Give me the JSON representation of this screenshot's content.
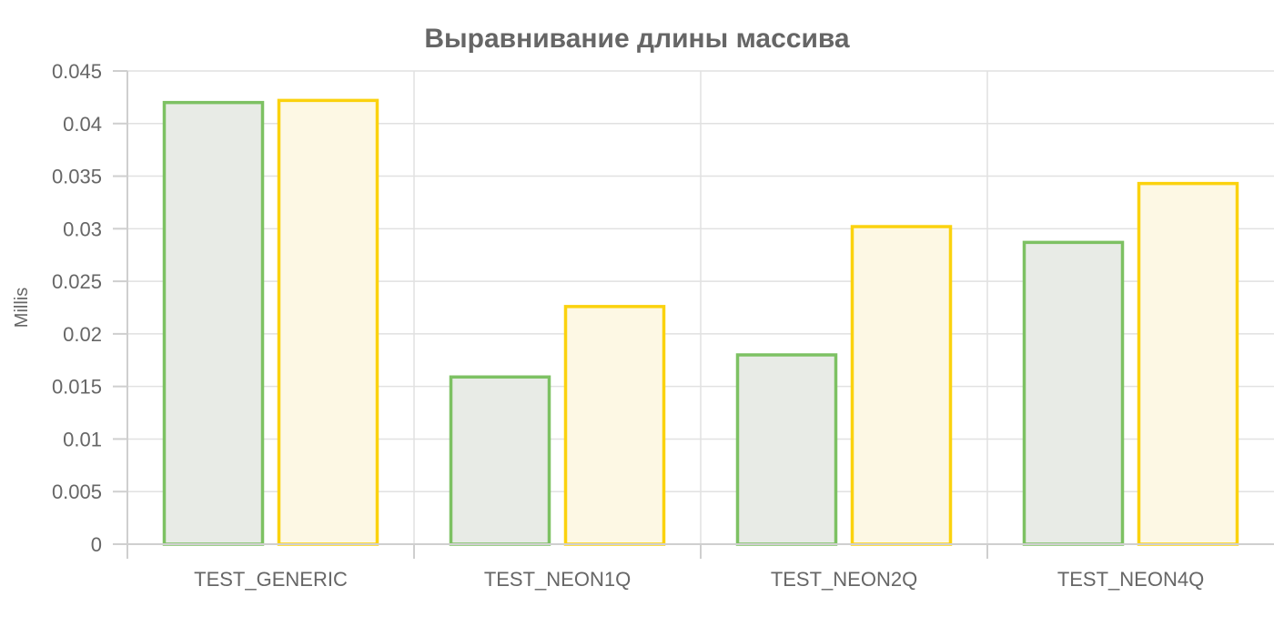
{
  "chart_data": {
    "type": "bar",
    "title": "Выравнивание длины массива",
    "xlabel": "",
    "ylabel": "Millis",
    "categories": [
      "TEST_GENERIC",
      "TEST_NEON1Q",
      "TEST_NEON2Q",
      "TEST_NEON4Q"
    ],
    "series": [
      {
        "values": [
          0.042,
          0.0159,
          0.018,
          0.0287
        ],
        "color": "#7dc163",
        "fill": "#e8ebe6"
      },
      {
        "values": [
          0.0422,
          0.0226,
          0.0302,
          0.0343
        ],
        "color": "#fbd20e",
        "fill": "#fdf8e4"
      }
    ],
    "ylim": [
      0,
      0.045
    ],
    "yticks": [
      "0",
      "0.005",
      "0.01",
      "0.015",
      "0.02",
      "0.025",
      "0.03",
      "0.035",
      "0.04",
      "0.045"
    ],
    "grid": true,
    "legend": "none"
  }
}
